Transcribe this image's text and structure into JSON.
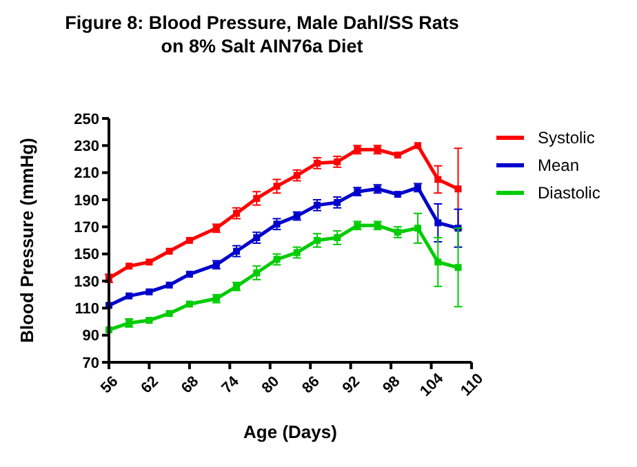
{
  "chart_data": {
    "type": "line",
    "title": "Figure 8: Blood Pressure, Male Dahl/SS Rats\non 8% Salt AIN76a Diet",
    "xlabel": "Age (Days)",
    "ylabel": "Blood Pressure (mmHg)",
    "x": [
      56,
      59,
      62,
      65,
      68,
      72,
      75,
      78,
      81,
      84,
      87,
      90,
      93,
      96,
      99,
      102,
      105,
      108
    ],
    "series": [
      {
        "name": "Systolic",
        "color": "#ff0000",
        "values": [
          132,
          141,
          144,
          152,
          160,
          169,
          180,
          191,
          200,
          208,
          217,
          218,
          227,
          227,
          223,
          230,
          205,
          198
        ],
        "errors": [
          3,
          null,
          null,
          null,
          null,
          3,
          4,
          5,
          5,
          4,
          4,
          4,
          3,
          3,
          null,
          null,
          10,
          30
        ]
      },
      {
        "name": "Mean",
        "color": "#0000cc",
        "values": [
          112,
          119,
          122,
          127,
          135,
          142,
          152,
          162,
          172,
          178,
          186,
          188,
          196,
          198,
          194,
          199,
          173,
          169
        ],
        "errors": [
          null,
          null,
          null,
          null,
          null,
          3,
          4,
          4,
          4,
          3,
          4,
          4,
          3,
          3,
          null,
          3,
          14,
          14
        ]
      },
      {
        "name": "Diastolic",
        "color": "#00cc00",
        "values": [
          94,
          99,
          101,
          106,
          113,
          117,
          126,
          136,
          146,
          151,
          160,
          162,
          171,
          171,
          166,
          169,
          144,
          140
        ],
        "errors": [
          null,
          3,
          null,
          null,
          null,
          3,
          3,
          5,
          4,
          4,
          5,
          5,
          3,
          3,
          4,
          11,
          18,
          29
        ]
      }
    ],
    "xlim": [
      56,
      110
    ],
    "xticks": [
      56,
      62,
      68,
      74,
      80,
      86,
      92,
      98,
      104,
      110
    ],
    "ylim": [
      70,
      250
    ],
    "yticks": [
      70,
      90,
      110,
      130,
      150,
      170,
      190,
      210,
      230,
      250
    ],
    "grid": false,
    "legend": "right",
    "marker": "square",
    "line_style": "solid"
  }
}
